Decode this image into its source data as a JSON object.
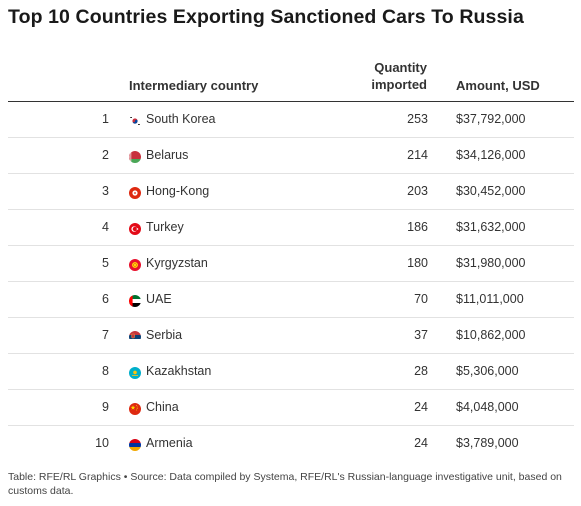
{
  "title": "Top 10 Countries Exporting Sanctioned Cars To Russia",
  "columns": {
    "country": "Intermediary country",
    "quantity_line1": "Quantity",
    "quantity_line2": "imported",
    "amount": "Amount, USD"
  },
  "chart_data": {
    "type": "table",
    "title": "Top 10 Countries Exporting Sanctioned Cars To Russia",
    "columns": [
      "",
      "Intermediary country",
      "Quantity imported",
      "Amount, USD"
    ],
    "rows": [
      {
        "rank": "1",
        "flag": "south-korea-flag",
        "country": "South Korea",
        "quantity": "253",
        "amount": "$37,792,000"
      },
      {
        "rank": "2",
        "flag": "belarus-flag",
        "country": "Belarus",
        "quantity": "214",
        "amount": "$34,126,000"
      },
      {
        "rank": "3",
        "flag": "hong-kong-flag",
        "country": "Hong-Kong",
        "quantity": "203",
        "amount": "$30,452,000"
      },
      {
        "rank": "4",
        "flag": "turkey-flag",
        "country": "Turkey",
        "quantity": "186",
        "amount": "$31,632,000"
      },
      {
        "rank": "5",
        "flag": "kyrgyzstan-flag",
        "country": "Kyrgyzstan",
        "quantity": "180",
        "amount": "$31,980,000"
      },
      {
        "rank": "6",
        "flag": "uae-flag",
        "country": "UAE",
        "quantity": "70",
        "amount": "$11,011,000"
      },
      {
        "rank": "7",
        "flag": "serbia-flag",
        "country": "Serbia",
        "quantity": "37",
        "amount": "$10,862,000"
      },
      {
        "rank": "8",
        "flag": "kazakhstan-flag",
        "country": "Kazakhstan",
        "quantity": "28",
        "amount": "$5,306,000"
      },
      {
        "rank": "9",
        "flag": "china-flag",
        "country": "China",
        "quantity": "24",
        "amount": "$4,048,000"
      },
      {
        "rank": "10",
        "flag": "armenia-flag",
        "country": "Armenia",
        "quantity": "24",
        "amount": "$3,789,000"
      }
    ]
  },
  "footer": "Table: RFE/RL Graphics • Source: Data compiled by Systema, RFE/RL's Russian-language investigative unit, based on customs data."
}
